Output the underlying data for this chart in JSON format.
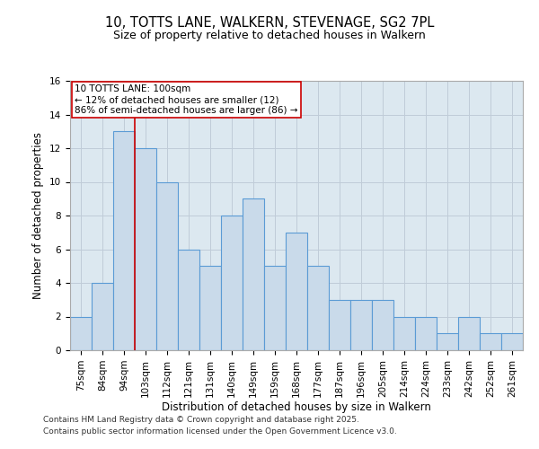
{
  "title_line1": "10, TOTTS LANE, WALKERN, STEVENAGE, SG2 7PL",
  "title_line2": "Size of property relative to detached houses in Walkern",
  "xlabel": "Distribution of detached houses by size in Walkern",
  "ylabel": "Number of detached properties",
  "categories": [
    "75sqm",
    "84sqm",
    "94sqm",
    "103sqm",
    "112sqm",
    "121sqm",
    "131sqm",
    "140sqm",
    "149sqm",
    "159sqm",
    "168sqm",
    "177sqm",
    "187sqm",
    "196sqm",
    "205sqm",
    "214sqm",
    "224sqm",
    "233sqm",
    "242sqm",
    "252sqm",
    "261sqm"
  ],
  "values": [
    2,
    4,
    13,
    12,
    10,
    6,
    5,
    8,
    9,
    5,
    7,
    5,
    3,
    3,
    3,
    2,
    2,
    1,
    2,
    1,
    1
  ],
  "bar_color": "#c9daea",
  "bar_edge_color": "#5b9bd5",
  "redline_x": 2.5,
  "annotation_text": "10 TOTTS LANE: 100sqm\n← 12% of detached houses are smaller (12)\n86% of semi-detached houses are larger (86) →",
  "annotation_box_color": "#ffffff",
  "annotation_box_edge": "#cc0000",
  "redline_color": "#cc0000",
  "ylim": [
    0,
    16
  ],
  "yticks": [
    0,
    2,
    4,
    6,
    8,
    10,
    12,
    14,
    16
  ],
  "grid_color": "#c0ccd8",
  "bg_color": "#dce8f0",
  "fig_bg_color": "#ffffff",
  "footer_line1": "Contains HM Land Registry data © Crown copyright and database right 2025.",
  "footer_line2": "Contains public sector information licensed under the Open Government Licence v3.0.",
  "title_fontsize": 10.5,
  "subtitle_fontsize": 9,
  "axis_label_fontsize": 8.5,
  "tick_fontsize": 7.5,
  "annotation_fontsize": 7.5,
  "footer_fontsize": 6.5
}
